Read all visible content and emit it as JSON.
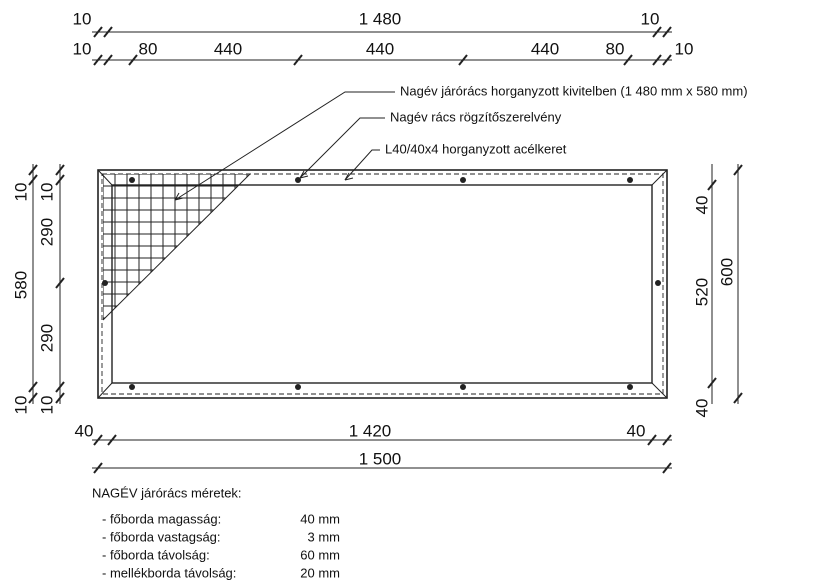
{
  "top_dimensions": {
    "overall": [
      "10",
      "1 480",
      "10"
    ],
    "segments": [
      "10",
      "80",
      "440",
      "440",
      "440",
      "80",
      "10"
    ]
  },
  "annotations": [
    "Nagév járórács horganyzott kivitelben (1 480 mm x 580 mm)",
    "Nagév rács rögzítőszerelvény",
    "L40/40x4 horganyzott acélkeret"
  ],
  "left_dimensions": {
    "overall": [
      "10",
      "580",
      "10"
    ],
    "segments": [
      "10",
      "290",
      "290",
      "10"
    ]
  },
  "right_dimensions": {
    "segments": [
      "40",
      "520",
      "40"
    ],
    "overall": "600"
  },
  "bottom_dimensions": {
    "segments": [
      "40",
      "1 420",
      "40"
    ],
    "overall": "1 500"
  },
  "specs": {
    "title": "NAGÉV járórács méretek:",
    "rows": [
      {
        "label": "- főborda magasság:",
        "value": "40 mm"
      },
      {
        "label": "- főborda vastagság:",
        "value": "3 mm"
      },
      {
        "label": "- főborda távolság:",
        "value": "60 mm"
      },
      {
        "label": "- mellékborda távolság:",
        "value": "20 mm"
      }
    ]
  }
}
